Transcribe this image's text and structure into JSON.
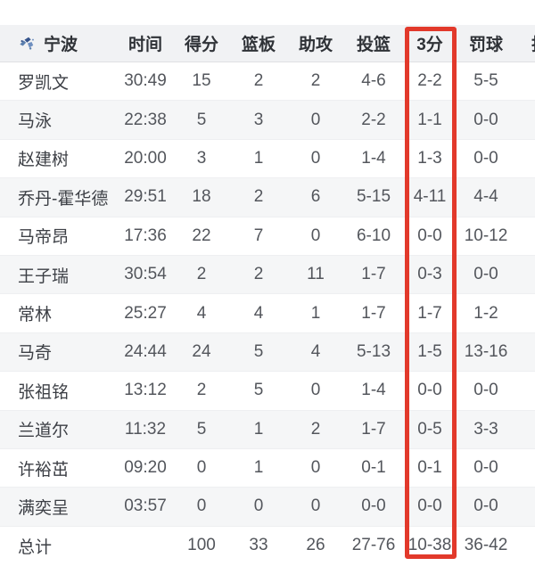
{
  "team": {
    "name": "宁波"
  },
  "table": {
    "columns": [
      "时间",
      "得分",
      "篮板",
      "助攻",
      "投篮",
      "3分",
      "罚球"
    ],
    "partial_last_column": "抢",
    "highlighted_column": "3分",
    "rows": [
      {
        "name": "罗凯文",
        "time": "30:49",
        "pts": "15",
        "reb": "2",
        "ast": "2",
        "fg": "4-6",
        "tp": "2-2",
        "ft": "5-5"
      },
      {
        "name": "马泳",
        "time": "22:38",
        "pts": "5",
        "reb": "3",
        "ast": "0",
        "fg": "2-2",
        "tp": "1-1",
        "ft": "0-0"
      },
      {
        "name": "赵建树",
        "time": "20:00",
        "pts": "3",
        "reb": "1",
        "ast": "0",
        "fg": "1-4",
        "tp": "1-3",
        "ft": "0-0"
      },
      {
        "name": "乔丹-霍华德",
        "time": "29:51",
        "pts": "18",
        "reb": "2",
        "ast": "6",
        "fg": "5-15",
        "tp": "4-11",
        "ft": "4-4"
      },
      {
        "name": "马帝昂",
        "time": "17:36",
        "pts": "22",
        "reb": "7",
        "ast": "0",
        "fg": "6-10",
        "tp": "0-0",
        "ft": "10-12"
      },
      {
        "name": "王子瑞",
        "time": "30:54",
        "pts": "2",
        "reb": "2",
        "ast": "11",
        "fg": "1-7",
        "tp": "0-3",
        "ft": "0-0"
      },
      {
        "name": "常林",
        "time": "25:27",
        "pts": "4",
        "reb": "4",
        "ast": "1",
        "fg": "1-7",
        "tp": "1-7",
        "ft": "1-2"
      },
      {
        "name": "马奇",
        "time": "24:44",
        "pts": "24",
        "reb": "5",
        "ast": "4",
        "fg": "5-13",
        "tp": "1-5",
        "ft": "13-16"
      },
      {
        "name": "张祖铭",
        "time": "13:12",
        "pts": "2",
        "reb": "5",
        "ast": "0",
        "fg": "1-4",
        "tp": "0-0",
        "ft": "0-0"
      },
      {
        "name": "兰道尔",
        "time": "11:32",
        "pts": "5",
        "reb": "1",
        "ast": "2",
        "fg": "1-7",
        "tp": "0-5",
        "ft": "3-3"
      },
      {
        "name": "许裕茁",
        "time": "09:20",
        "pts": "0",
        "reb": "1",
        "ast": "0",
        "fg": "0-1",
        "tp": "0-1",
        "ft": "0-0"
      },
      {
        "name": "满奕呈",
        "time": "03:57",
        "pts": "0",
        "reb": "0",
        "ast": "0",
        "fg": "0-0",
        "tp": "0-0",
        "ft": "0-0"
      }
    ],
    "totals": {
      "name": "总计",
      "time": "",
      "pts": "100",
      "reb": "33",
      "ast": "26",
      "fg": "27-76",
      "tp": "10-38",
      "ft": "36-42"
    }
  },
  "colors": {
    "highlight_red": "#e2392b",
    "header_bg": "#f1f2f4",
    "row_alt_bg": "#f5f6f7",
    "logo_blue": "#35548c"
  }
}
